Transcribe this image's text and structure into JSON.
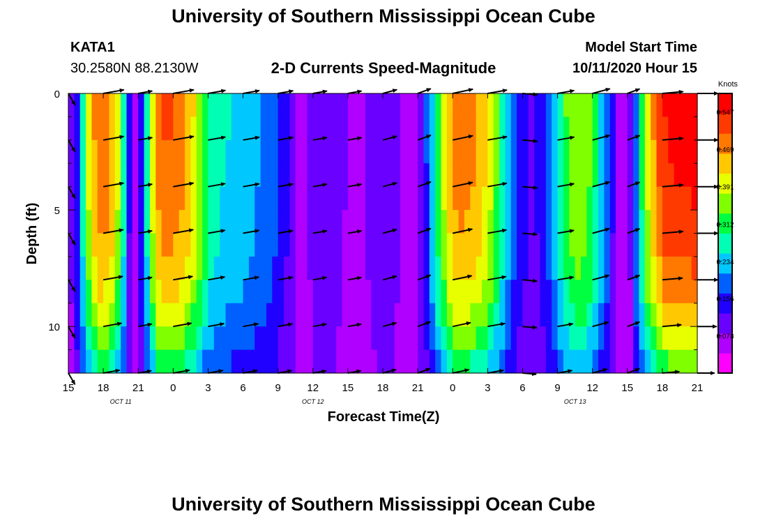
{
  "page": {
    "title": "University of Southern Mississippi Ocean Cube",
    "footer_title": "University of Southern Mississippi Ocean Cube",
    "station_id": "KATA1",
    "station_coords": "30.2580N 88.2130W",
    "plot_title": "2-D Currents Speed-Magnitude",
    "model_start_label": "Model Start Time",
    "model_start_value": "10/11/2020 Hour 15"
  },
  "chart_data": {
    "type": "heatmap",
    "title": "2-D Currents Speed-Magnitude",
    "xlabel": "Forecast Time(Z)",
    "ylabel": "Depth (ft)",
    "x_tick_labels": [
      "15",
      "18",
      "21",
      "0",
      "3",
      "6",
      "9",
      "12",
      "15",
      "18",
      "21",
      "0",
      "3",
      "6",
      "9",
      "12",
      "15",
      "18",
      "21"
    ],
    "x_tick_hours": [
      0,
      3,
      6,
      9,
      12,
      15,
      18,
      21,
      24,
      27,
      30,
      33,
      36,
      39,
      42,
      45,
      48,
      51,
      54
    ],
    "date_labels": [
      {
        "text": "OCT  11",
        "hour": 4.5
      },
      {
        "text": "OCT  12",
        "hour": 21
      },
      {
        "text": "OCT  13",
        "hour": 43.5
      }
    ],
    "y_tick_labels": [
      "0",
      "5",
      "10"
    ],
    "y_ticks": [
      0,
      5,
      10
    ],
    "ylim": [
      0,
      12
    ],
    "xlim": [
      0,
      54
    ],
    "colorbar": {
      "unit": "Knots",
      "tick_labels": [
        "0.547",
        "0.469",
        "0.391",
        "0.312",
        "0.234",
        "0.156",
        "0.078"
      ],
      "ticks": [
        0.547,
        0.469,
        0.391,
        0.312,
        0.234,
        0.156,
        0.078
      ],
      "range": [
        0,
        0.586
      ],
      "colors": [
        "#ff00ff",
        "#b000ff",
        "#6a00ff",
        "#2000ff",
        "#0060ff",
        "#00c8ff",
        "#00ffb4",
        "#00ff40",
        "#80ff00",
        "#e8ff00",
        "#ffc800",
        "#ff7800",
        "#ff3a00",
        "#ff0000"
      ]
    },
    "depths_ft": [
      0,
      1,
      2,
      3,
      4,
      5,
      6,
      7,
      8,
      9,
      10,
      11,
      12
    ],
    "speed_profile": {
      "hours": [
        0,
        0.5,
        1,
        1.5,
        2,
        2.5,
        3,
        3.5,
        4,
        4.5,
        5,
        5.5,
        6,
        6.5,
        7,
        7.5,
        8,
        8.5,
        9,
        10,
        11,
        12,
        13,
        14,
        15,
        16,
        17,
        18,
        19,
        20,
        21,
        22,
        23,
        24,
        25,
        26,
        27,
        28,
        29,
        30,
        31,
        32,
        33,
        34,
        35,
        36,
        37,
        38,
        39,
        40,
        41,
        42,
        43,
        44,
        45,
        46,
        47,
        48,
        49,
        50,
        51,
        52,
        53,
        54
      ],
      "surface_knots": [
        0.06,
        0.12,
        0.2,
        0.34,
        0.44,
        0.49,
        0.5,
        0.48,
        0.44,
        0.34,
        0.2,
        0.06,
        0.1,
        0.2,
        0.34,
        0.46,
        0.5,
        0.51,
        0.5,
        0.48,
        0.4,
        0.3,
        0.26,
        0.25,
        0.24,
        0.22,
        0.2,
        0.17,
        0.12,
        0.05,
        0.1,
        0.12,
        0.1,
        0.08,
        0.08,
        0.09,
        0.12,
        0.1,
        0.06,
        0.08,
        0.2,
        0.36,
        0.48,
        0.49,
        0.47,
        0.42,
        0.32,
        0.2,
        0.14,
        0.12,
        0.16,
        0.26,
        0.36,
        0.38,
        0.33,
        0.22,
        0.1,
        0.03,
        0.26,
        0.44,
        0.54,
        0.56,
        0.56,
        0.57
      ],
      "depth_decay": [
        1,
        1,
        0.99,
        0.98,
        0.97,
        0.95,
        0.93,
        0.9,
        0.86,
        0.8,
        0.72,
        0.62,
        0.5
      ]
    },
    "vectors": {
      "hours": [
        0,
        3,
        6,
        9,
        12,
        15,
        18,
        21,
        24,
        27,
        30,
        33,
        36,
        39,
        42,
        45,
        48,
        51,
        54
      ],
      "depths_ft": [
        0,
        2,
        4,
        6,
        8,
        10,
        12
      ],
      "direction_deg": [
        -60,
        10,
        10,
        10,
        10,
        10,
        10,
        10,
        10,
        15,
        20,
        12,
        10,
        -5,
        10,
        15,
        20,
        5,
        0
      ]
    }
  }
}
